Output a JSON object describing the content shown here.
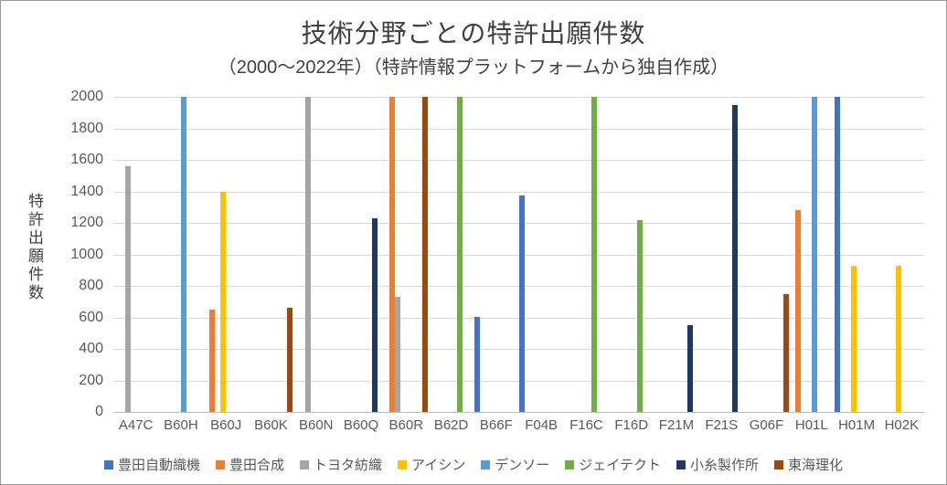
{
  "chart_data": {
    "type": "bar",
    "bar_mode": "grouped",
    "title": "技術分野ごとの特許出願件数",
    "subtitle": "（2000〜2022年）（特許情報プラットフォームから独自作成）",
    "xlabel": "",
    "ylabel": "特許出願件数",
    "ylim": [
      0,
      2000
    ],
    "yticks": [
      0,
      200,
      400,
      600,
      800,
      1000,
      1200,
      1400,
      1600,
      1800,
      2000
    ],
    "grid": true,
    "legend_position": "bottom",
    "categories": [
      "A47C",
      "B60H",
      "B60J",
      "B60K",
      "B60N",
      "B60Q",
      "B60R",
      "B62D",
      "B66F",
      "F04B",
      "F16C",
      "F16D",
      "F21M",
      "F21S",
      "G06F",
      "H01L",
      "H01M",
      "H02K"
    ],
    "series": [
      {
        "name": "豊田自動織機",
        "color": "#4472C4",
        "values": [
          0,
          0,
          0,
          0,
          0,
          0,
          0,
          0,
          605,
          1375,
          0,
          0,
          0,
          0,
          0,
          0,
          2000,
          0
        ]
      },
      {
        "name": "豊田合成",
        "color": "#ED7D31",
        "values": [
          0,
          0,
          650,
          0,
          0,
          0,
          2000,
          0,
          0,
          0,
          0,
          0,
          0,
          0,
          0,
          1280,
          0,
          0
        ]
      },
      {
        "name": "トヨタ紡織",
        "color": "#A5A5A5",
        "values": [
          1560,
          0,
          0,
          0,
          2000,
          0,
          730,
          0,
          0,
          0,
          0,
          0,
          0,
          0,
          0,
          0,
          0,
          0
        ]
      },
      {
        "name": "アイシン",
        "color": "#FFC000",
        "values": [
          0,
          0,
          1400,
          0,
          0,
          0,
          0,
          0,
          0,
          0,
          0,
          0,
          0,
          0,
          0,
          0,
          925,
          925
        ]
      },
      {
        "name": "デンソー",
        "color": "#5B9BD5",
        "values": [
          0,
          2000,
          0,
          0,
          0,
          0,
          0,
          0,
          0,
          0,
          0,
          0,
          0,
          0,
          0,
          2000,
          0,
          0
        ]
      },
      {
        "name": "ジェイテクト",
        "color": "#70AD47",
        "values": [
          0,
          0,
          0,
          0,
          0,
          0,
          0,
          2000,
          0,
          0,
          2000,
          1215,
          0,
          0,
          0,
          0,
          0,
          0
        ]
      },
      {
        "name": "小糸製作所",
        "color": "#203864",
        "values": [
          0,
          0,
          0,
          0,
          0,
          1230,
          0,
          0,
          0,
          0,
          0,
          0,
          550,
          1950,
          0,
          0,
          0,
          0
        ]
      },
      {
        "name": "東海理化",
        "color": "#9E480E",
        "values": [
          0,
          0,
          0,
          660,
          0,
          0,
          2000,
          0,
          0,
          0,
          0,
          0,
          0,
          0,
          750,
          0,
          0,
          0
        ]
      }
    ]
  }
}
